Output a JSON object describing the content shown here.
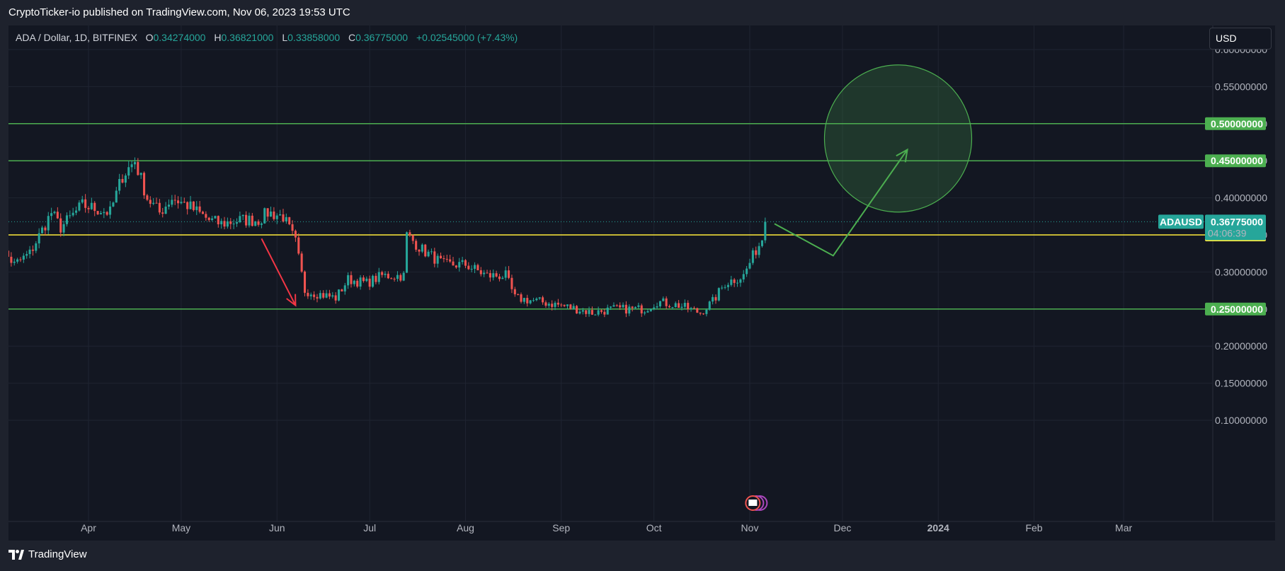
{
  "header": {
    "text": "CryptoTicker-io published on TradingView.com, Nov 06, 2023 19:53 UTC"
  },
  "legend": {
    "symbol": "ADA / Dollar, 1D, BITFINEX",
    "open_label": "O",
    "open": "0.34274000",
    "high_label": "H",
    "high": "0.36821000",
    "low_label": "L",
    "low": "0.33858000",
    "close_label": "C",
    "close": "0.36775000",
    "change": "+0.02545000 (+7.43%)"
  },
  "currency_button": "USD",
  "footer": {
    "brand": "TradingView"
  },
  "colors": {
    "background": "#131722",
    "up": "#26a69a",
    "down": "#ef5350",
    "green_level": "#4caf50",
    "yellow_level": "#ffeb3b",
    "red_arrow": "#f23645"
  },
  "chart_data": {
    "type": "candlestick",
    "symbol": "ADAUSD",
    "ylim": [
      0.07,
      0.62
    ],
    "y_ticks": [
      "0.60000000",
      "0.55000000",
      "0.50000000",
      "0.45000000",
      "0.40000000",
      "0.35000000",
      "0.30000000",
      "0.25000000",
      "0.20000000",
      "0.15000000",
      "0.10000000"
    ],
    "x_ticks": [
      {
        "label": "Apr",
        "date": "2023-04-01"
      },
      {
        "label": "May",
        "date": "2023-05-01"
      },
      {
        "label": "Jun",
        "date": "2023-06-01"
      },
      {
        "label": "Jul",
        "date": "2023-07-01"
      },
      {
        "label": "Aug",
        "date": "2023-08-01"
      },
      {
        "label": "Sep",
        "date": "2023-09-01"
      },
      {
        "label": "Oct",
        "date": "2023-10-01"
      },
      {
        "label": "Nov",
        "date": "2023-11-01"
      },
      {
        "label": "Dec",
        "date": "2023-12-01"
      },
      {
        "label": "2024",
        "date": "2024-01-01"
      },
      {
        "label": "Feb",
        "date": "2024-02-01"
      },
      {
        "label": "Mar",
        "date": "2024-03-01"
      }
    ],
    "x_range": [
      "2023-03-01",
      "2024-03-29"
    ],
    "horizontal_levels": [
      {
        "value": 0.5,
        "label": "0.50000000",
        "color": "green"
      },
      {
        "value": 0.45,
        "label": "0.45000000",
        "color": "green"
      },
      {
        "value": 0.35,
        "label": "0.35000000",
        "color": "yellow"
      },
      {
        "value": 0.25,
        "label": "0.25000000",
        "color": "green"
      }
    ],
    "last_price": {
      "value": 0.36775,
      "label": "0.36775000",
      "symbol_tag": "ADAUSD",
      "countdown": "04:06:39"
    },
    "anchors": [
      {
        "date": "2023-03-01",
        "close": 0.345
      },
      {
        "date": "2023-03-08",
        "close": 0.31
      },
      {
        "date": "2023-03-13",
        "close": 0.325
      },
      {
        "date": "2023-03-20",
        "close": 0.38
      },
      {
        "date": "2023-03-23",
        "close": 0.36
      },
      {
        "date": "2023-03-30",
        "close": 0.39
      },
      {
        "date": "2023-04-08",
        "close": 0.38
      },
      {
        "date": "2023-04-12",
        "close": 0.43
      },
      {
        "date": "2023-04-16",
        "close": 0.45
      },
      {
        "date": "2023-04-20",
        "close": 0.4
      },
      {
        "date": "2023-04-24",
        "close": 0.38
      },
      {
        "date": "2023-04-28",
        "close": 0.4
      },
      {
        "date": "2023-05-03",
        "close": 0.39
      },
      {
        "date": "2023-05-10",
        "close": 0.37
      },
      {
        "date": "2023-05-14",
        "close": 0.365
      },
      {
        "date": "2023-05-20",
        "close": 0.37
      },
      {
        "date": "2023-05-26",
        "close": 0.37
      },
      {
        "date": "2023-05-29",
        "close": 0.38
      },
      {
        "date": "2023-06-03",
        "close": 0.375
      },
      {
        "date": "2023-06-07",
        "close": 0.34
      },
      {
        "date": "2023-06-10",
        "close": 0.275
      },
      {
        "date": "2023-06-15",
        "close": 0.27
      },
      {
        "date": "2023-06-20",
        "close": 0.265
      },
      {
        "date": "2023-06-24",
        "close": 0.29
      },
      {
        "date": "2023-06-30",
        "close": 0.285
      },
      {
        "date": "2023-07-05",
        "close": 0.295
      },
      {
        "date": "2023-07-12",
        "close": 0.295
      },
      {
        "date": "2023-07-13",
        "close": 0.35
      },
      {
        "date": "2023-07-18",
        "close": 0.33
      },
      {
        "date": "2023-07-25",
        "close": 0.31
      },
      {
        "date": "2023-08-01",
        "close": 0.31
      },
      {
        "date": "2023-08-08",
        "close": 0.295
      },
      {
        "date": "2023-08-14",
        "close": 0.295
      },
      {
        "date": "2023-08-17",
        "close": 0.265
      },
      {
        "date": "2023-08-25",
        "close": 0.26
      },
      {
        "date": "2023-09-01",
        "close": 0.255
      },
      {
        "date": "2023-09-11",
        "close": 0.245
      },
      {
        "date": "2023-09-18",
        "close": 0.25
      },
      {
        "date": "2023-09-28",
        "close": 0.25
      },
      {
        "date": "2023-10-02",
        "close": 0.26
      },
      {
        "date": "2023-10-09",
        "close": 0.255
      },
      {
        "date": "2023-10-16",
        "close": 0.245
      },
      {
        "date": "2023-10-20",
        "close": 0.26
      },
      {
        "date": "2023-10-24",
        "close": 0.285
      },
      {
        "date": "2023-10-30",
        "close": 0.295
      },
      {
        "date": "2023-11-03",
        "close": 0.33
      },
      {
        "date": "2023-11-05",
        "close": 0.34274
      },
      {
        "date": "2023-11-06",
        "close": 0.36775
      }
    ],
    "drawings": {
      "red_arrow": [
        {
          "date": "2023-05-27",
          "price": 0.345
        },
        {
          "date": "2023-06-07",
          "price": 0.255
        }
      ],
      "green_path": [
        {
          "date": "2023-11-09",
          "price": 0.365
        },
        {
          "date": "2023-11-28",
          "price": 0.322
        },
        {
          "date": "2023-12-22",
          "price": 0.465
        }
      ],
      "target_circle": {
        "date": "2023-12-19",
        "price": 0.48
      }
    }
  }
}
